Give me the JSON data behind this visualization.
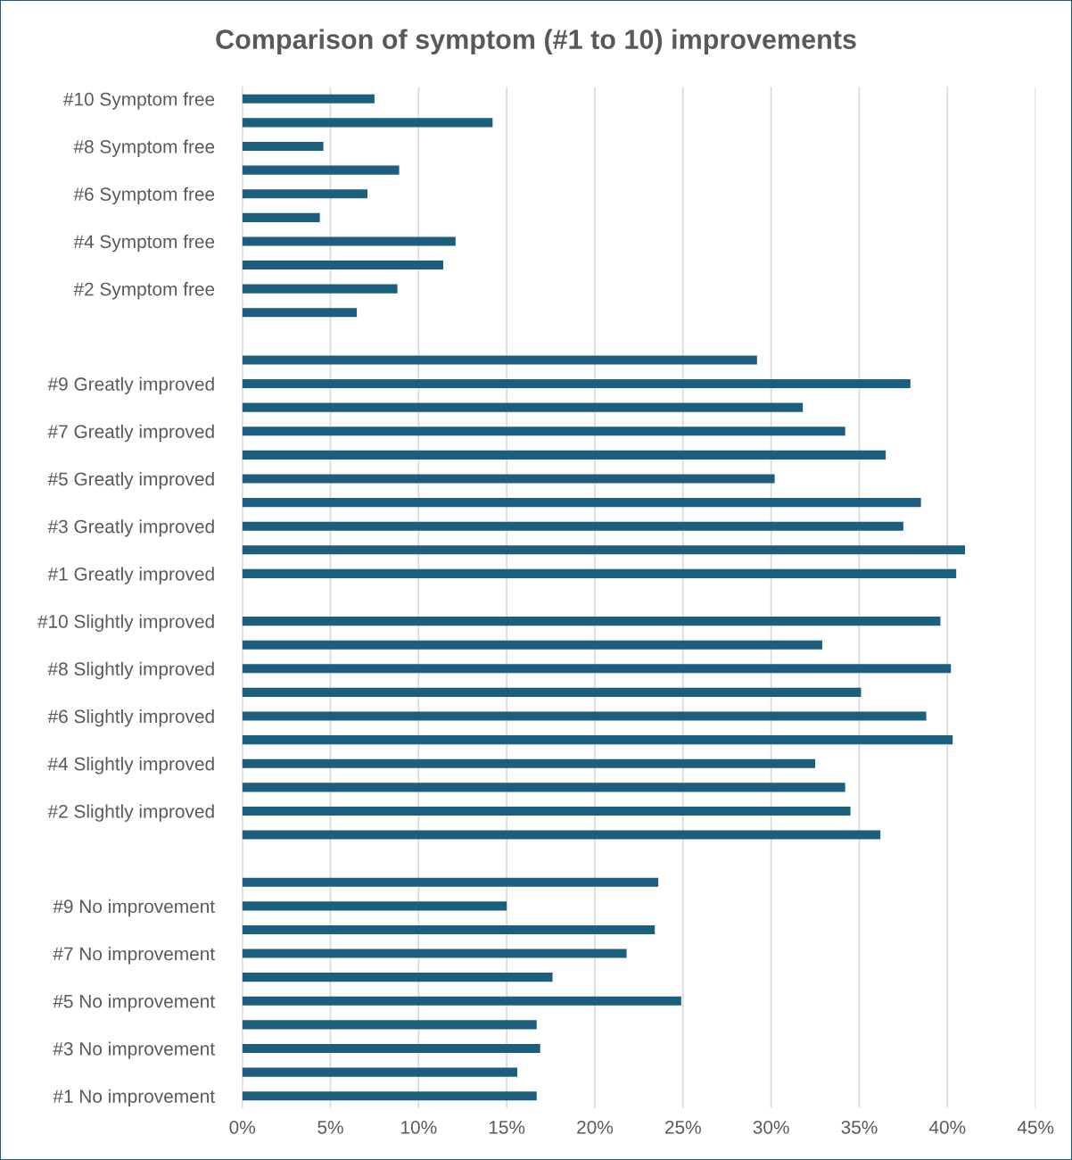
{
  "chart_data": {
    "type": "bar",
    "orientation": "horizontal",
    "title": "Comparison of symptom (#1 to 10) improvements",
    "categories": [
      "#10 Symptom free",
      null,
      "#8 Symptom free",
      null,
      "#6 Symptom free",
      null,
      "#4 Symptom free",
      null,
      "#2 Symptom free",
      null,
      null,
      null,
      "#9 Greatly improved",
      null,
      "#7 Greatly improved",
      null,
      "#5 Greatly improved",
      null,
      "#3 Greatly improved",
      null,
      "#1 Greatly improved",
      null,
      "#10 Slightly improved",
      null,
      "#8 Slightly improved",
      null,
      "#6 Slightly improved",
      null,
      "#4 Slightly improved",
      null,
      "#2 Slightly improved",
      null,
      null,
      null,
      "#9 No improvement",
      null,
      "#7 No improvement",
      null,
      "#5 No improvement",
      null,
      "#3 No improvement",
      null,
      "#1 No improvement"
    ],
    "values": [
      7.5,
      14.2,
      4.6,
      8.9,
      7.1,
      4.4,
      12.1,
      11.4,
      8.8,
      6.5,
      null,
      29.2,
      37.9,
      31.8,
      34.2,
      36.5,
      30.2,
      38.5,
      37.5,
      41.0,
      40.5,
      null,
      39.6,
      32.9,
      40.2,
      35.1,
      38.8,
      40.3,
      32.5,
      34.2,
      34.5,
      36.2,
      null,
      23.6,
      15.0,
      23.4,
      21.8,
      17.6,
      24.9,
      16.7,
      16.9,
      15.6,
      16.7
    ],
    "color": "#1b5e7e",
    "xlim": [
      0,
      45
    ],
    "xticks": [
      {
        "value": 0,
        "label": "0%"
      },
      {
        "value": 5,
        "label": "5%"
      },
      {
        "value": 10,
        "label": "10%"
      },
      {
        "value": 15,
        "label": "15%"
      },
      {
        "value": 20,
        "label": "20%"
      },
      {
        "value": 25,
        "label": "25%"
      },
      {
        "value": 30,
        "label": "30%"
      },
      {
        "value": 35,
        "label": "35%"
      },
      {
        "value": 40,
        "label": "40%"
      },
      {
        "value": 45,
        "label": "45%"
      }
    ],
    "grid": "x"
  }
}
